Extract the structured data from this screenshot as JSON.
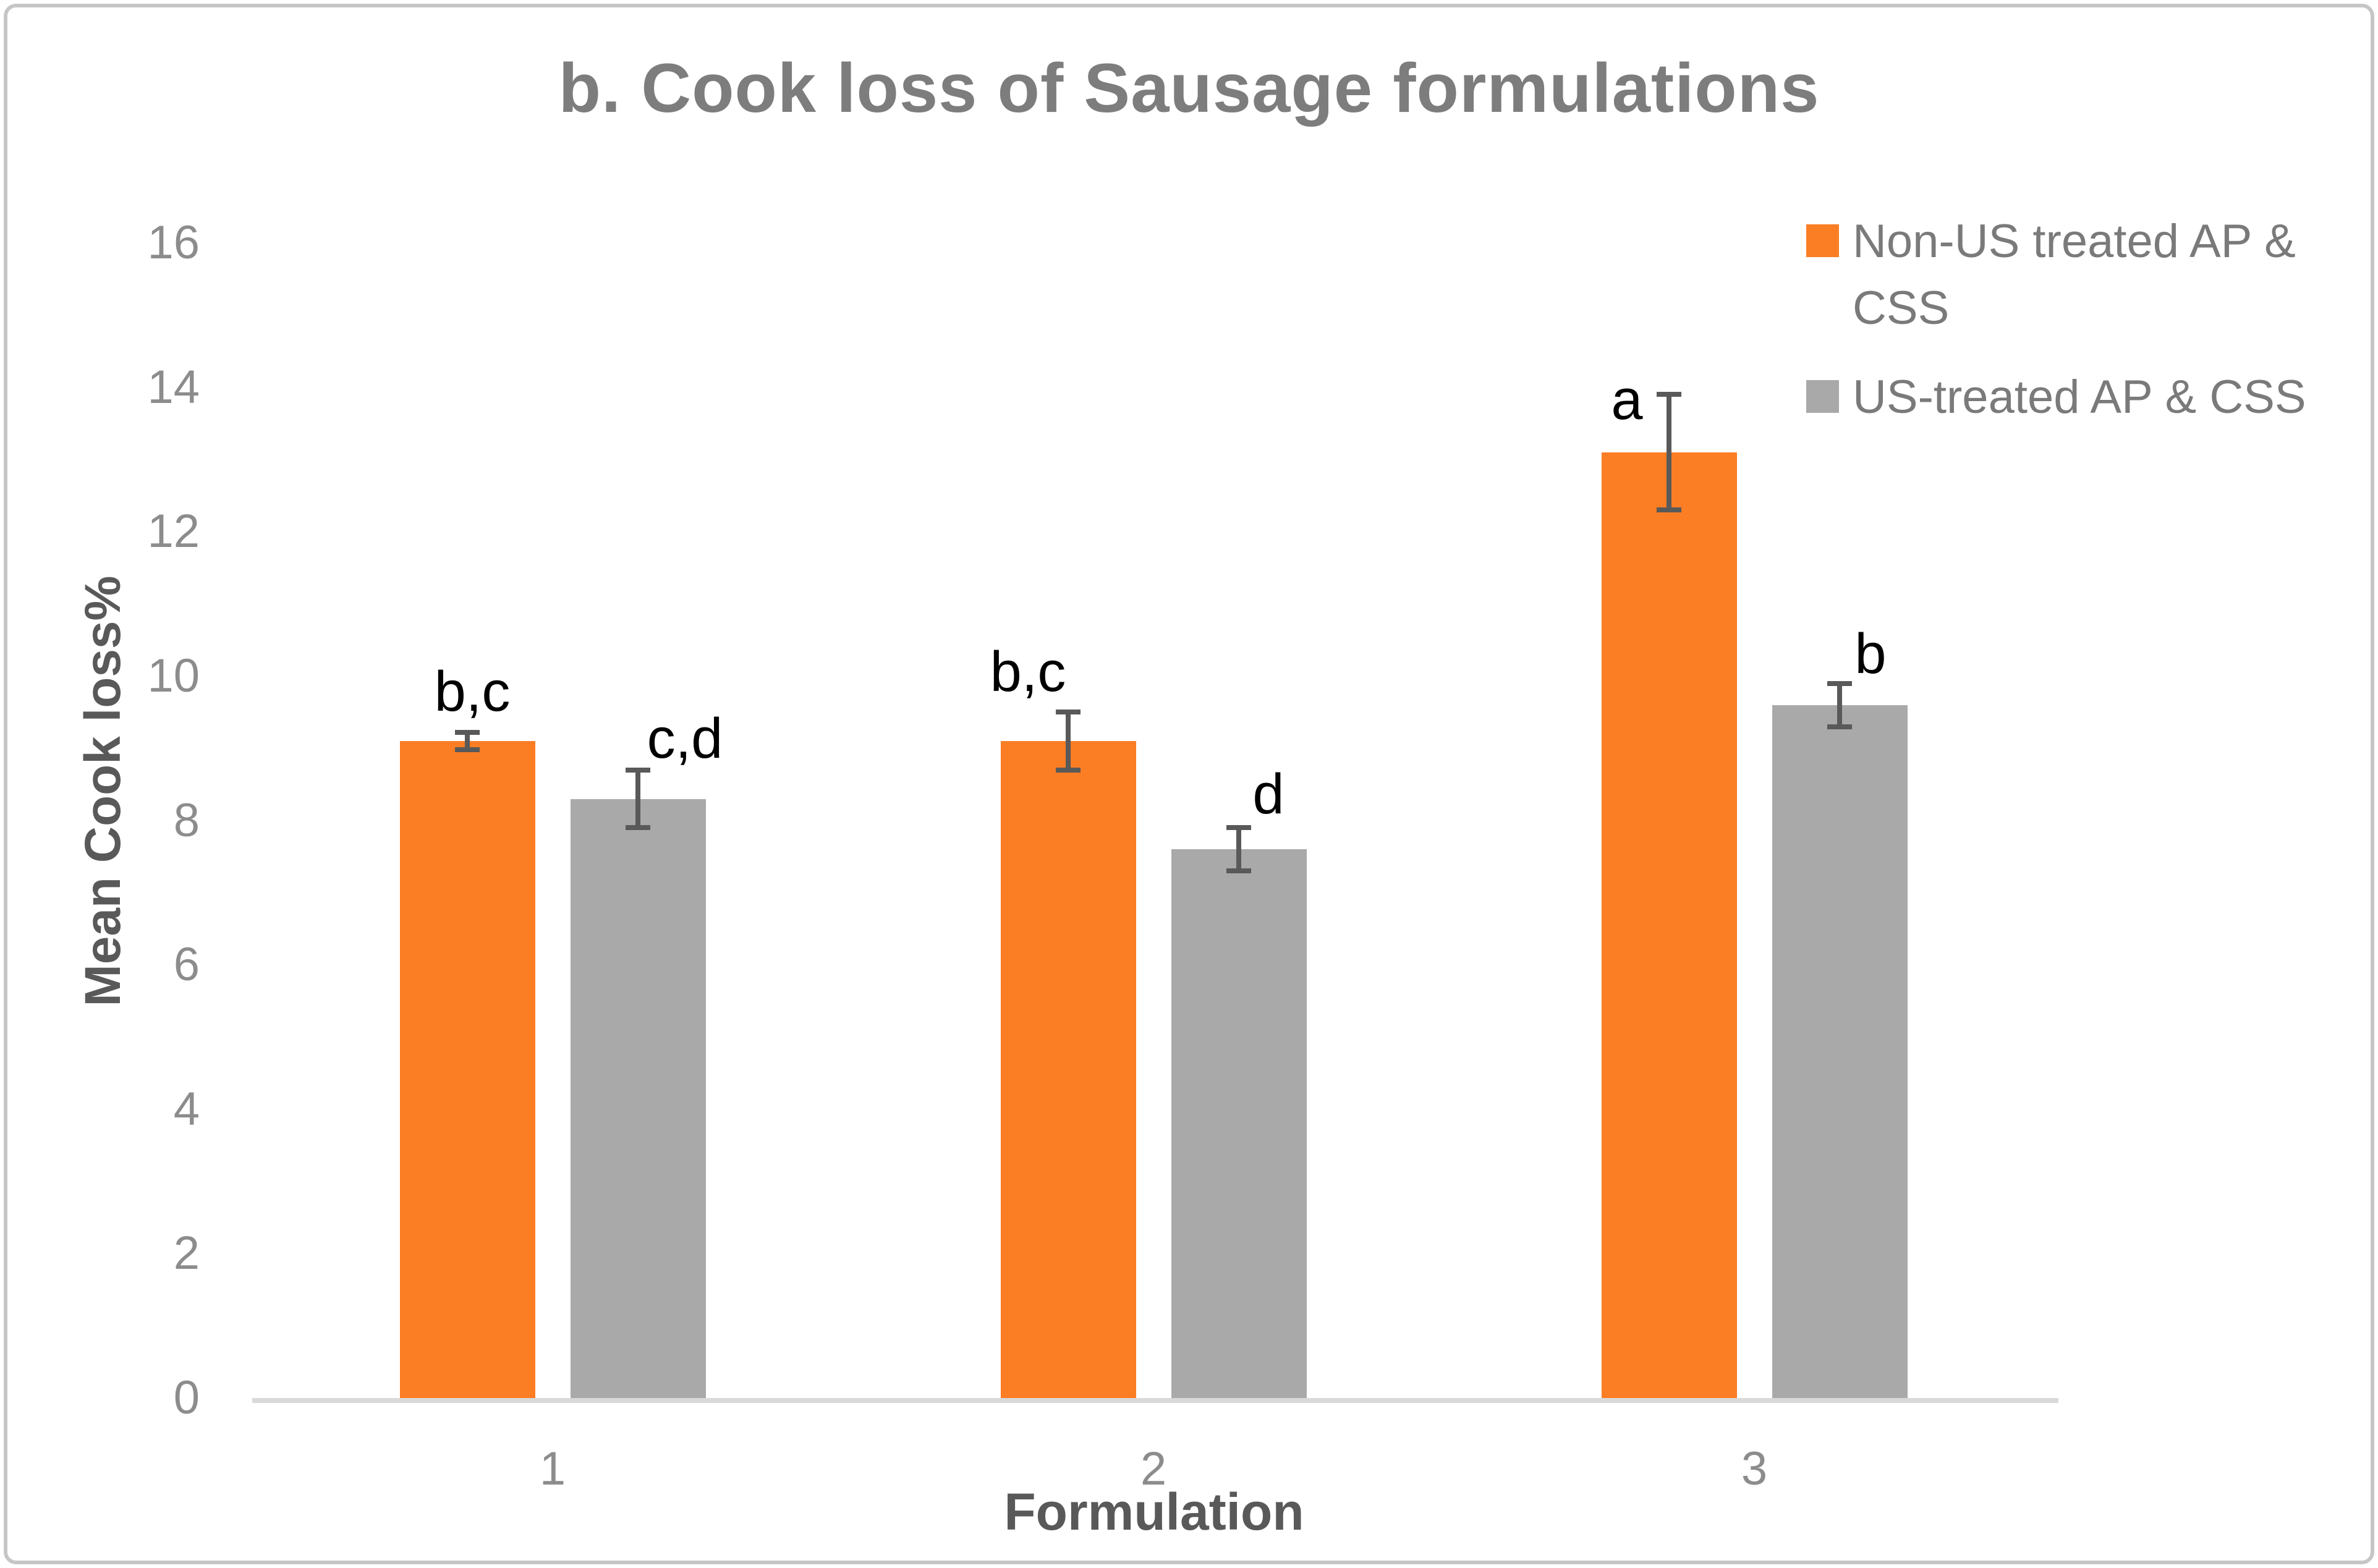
{
  "chart_data": {
    "type": "bar",
    "title": "b. Cook loss of Sausage formulations",
    "xlabel": "Formulation",
    "ylabel": "Mean Cook loss%",
    "categories": [
      "1",
      "2",
      "3"
    ],
    "ylim": [
      0,
      16
    ],
    "ytick_step": 2,
    "grid": false,
    "legend_position": "top-right",
    "series": [
      {
        "name": "Non-US treated AP & CSS",
        "color": "#fb7d24",
        "values": [
          9.1,
          9.1,
          13.1
        ],
        "errors": [
          0.12,
          0.4,
          0.8
        ],
        "labels": [
          "b,c",
          "b,c",
          "a"
        ],
        "label_offsets": [
          [
            8,
            -20
          ],
          [
            -65,
            -19
          ],
          [
            -68,
            55
          ]
        ]
      },
      {
        "name": "US-treated AP & CSS",
        "color": "#a9a9a9",
        "values": [
          8.3,
          7.6,
          9.6
        ],
        "errors": [
          0.4,
          0.3,
          0.3
        ],
        "labels": [
          "c,d",
          "d",
          "b"
        ],
        "label_offsets": [
          [
            76,
            -5
          ],
          [
            48,
            -8
          ],
          [
            50,
            -2
          ]
        ]
      }
    ],
    "error_bar_color": "#595959",
    "axis_line_color": "#d9d9d9"
  }
}
